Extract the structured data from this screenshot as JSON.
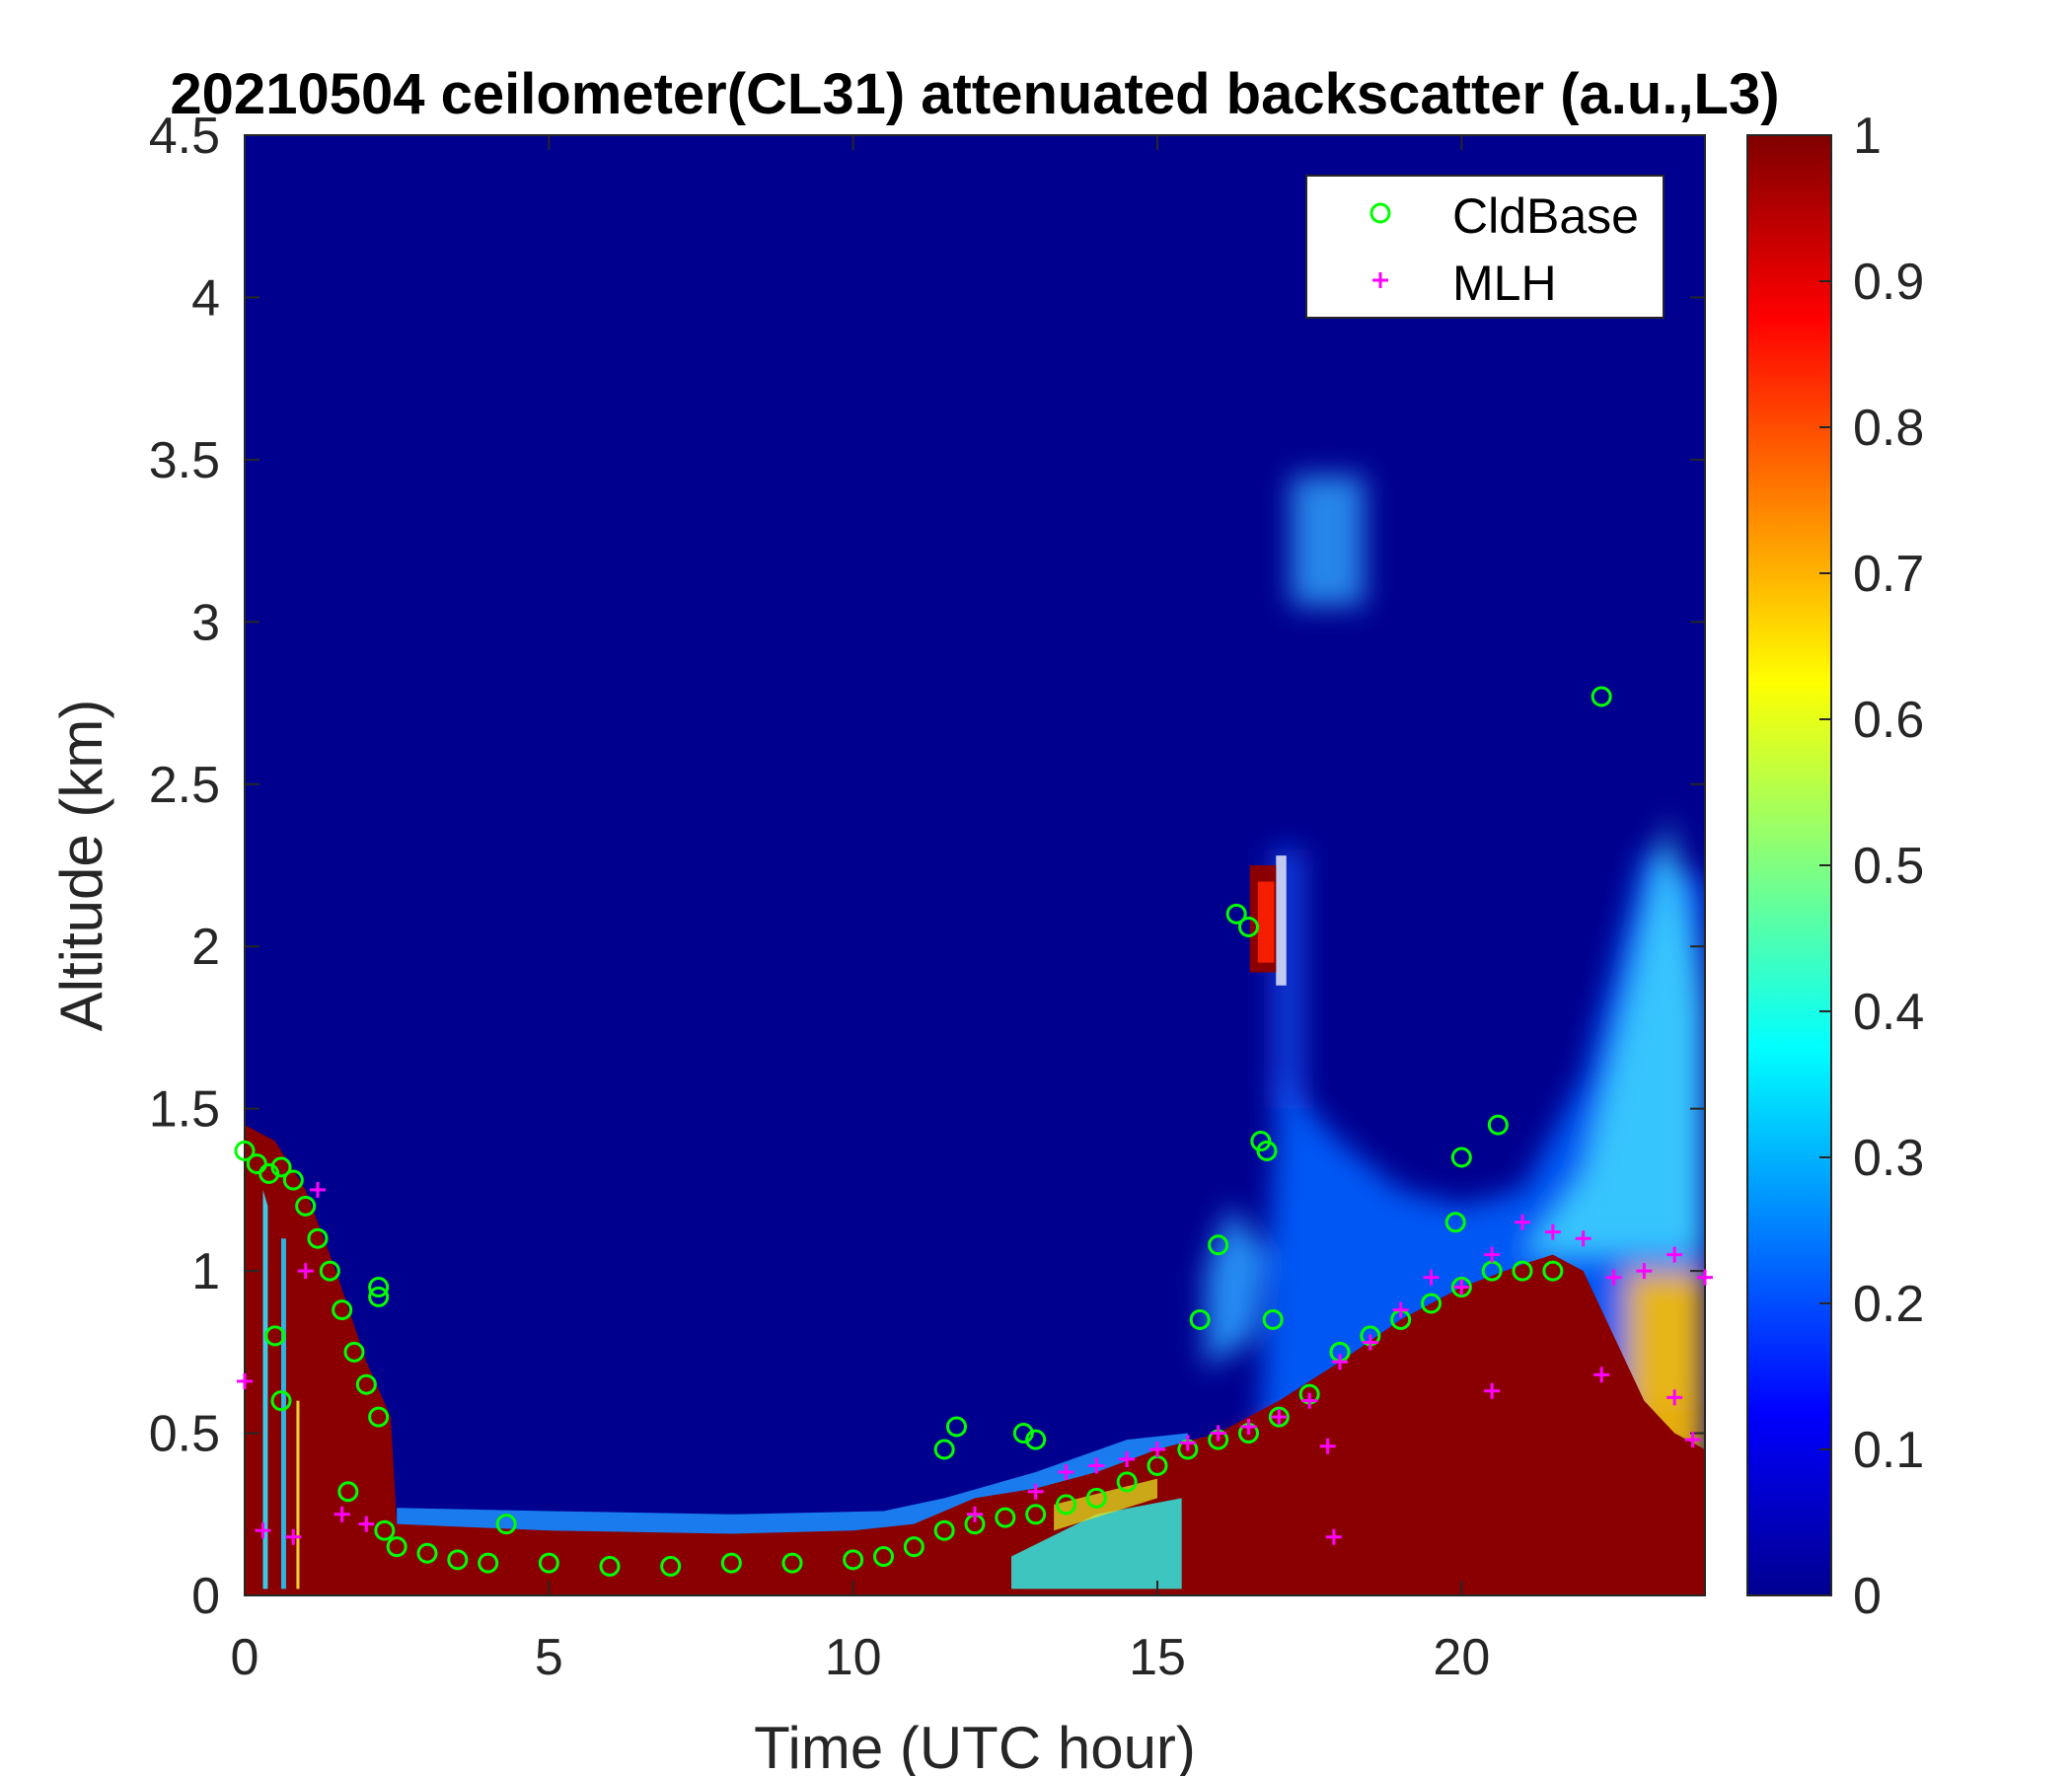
{
  "chart_data": {
    "type": "heatmap",
    "title": "20210504 ceilometer(CL31) attenuated backscatter (a.u.,L3)",
    "xlabel": "Time (UTC hour)",
    "ylabel": "Altitude (km)",
    "xlim": [
      0,
      24
    ],
    "ylim": [
      0,
      4.5
    ],
    "xticks": [
      "0",
      "5",
      "10",
      "15",
      "20"
    ],
    "yticks": [
      "0",
      "0.5",
      "1",
      "1.5",
      "2",
      "2.5",
      "3",
      "3.5",
      "4",
      "4.5"
    ],
    "colorbar": {
      "min": 0,
      "max": 1,
      "colormap": "jet",
      "ticks": [
        "0",
        "0.1",
        "0.2",
        "0.3",
        "0.4",
        "0.5",
        "0.6",
        "0.7",
        "0.8",
        "0.9",
        "1"
      ]
    },
    "legend": {
      "position": "top-right",
      "entries": [
        "CldBase",
        "MLH"
      ]
    },
    "colors": {
      "cldbase": "#00ff00",
      "mlh": "#ff00ff"
    },
    "series": [
      {
        "name": "CldBase",
        "marker": "circle",
        "x": [
          0.0,
          0.2,
          0.4,
          0.6,
          0.8,
          1.0,
          1.2,
          1.4,
          1.6,
          1.8,
          2.0,
          2.2,
          2.3,
          2.5,
          3.0,
          3.5,
          4.0,
          5.0,
          6.0,
          7.0,
          8.0,
          9.0,
          10.0,
          10.5,
          11.0,
          11.5,
          12.0,
          12.5,
          13.0,
          13.5,
          14.0,
          14.5,
          15.0,
          15.5,
          16.0,
          16.5,
          17.0,
          17.5,
          18.0,
          18.5,
          19.0,
          19.5,
          20.0,
          20.5,
          21.0,
          21.5,
          0.5,
          0.6,
          1.7,
          2.2,
          2.2,
          11.5,
          11.7,
          12.8,
          13.0,
          15.7,
          16.0,
          16.3,
          16.5,
          16.7,
          16.8,
          16.9,
          19.9,
          20.0,
          20.6,
          22.3,
          4.3
        ],
        "y": [
          1.37,
          1.33,
          1.3,
          1.32,
          1.28,
          1.2,
          1.1,
          1.0,
          0.88,
          0.75,
          0.65,
          0.55,
          0.2,
          0.15,
          0.13,
          0.11,
          0.1,
          0.1,
          0.09,
          0.09,
          0.1,
          0.1,
          0.11,
          0.12,
          0.15,
          0.2,
          0.22,
          0.24,
          0.25,
          0.28,
          0.3,
          0.35,
          0.4,
          0.45,
          0.48,
          0.5,
          0.55,
          0.62,
          0.75,
          0.8,
          0.85,
          0.9,
          0.95,
          1.0,
          1.0,
          1.0,
          0.8,
          0.6,
          0.32,
          0.95,
          0.92,
          0.45,
          0.52,
          0.5,
          0.48,
          0.85,
          1.08,
          2.1,
          2.06,
          1.4,
          1.37,
          0.85,
          1.15,
          1.35,
          1.45,
          2.77,
          0.22
        ]
      },
      {
        "name": "MLH",
        "marker": "plus",
        "x": [
          0.0,
          0.3,
          0.8,
          1.0,
          1.2,
          1.6,
          2.0,
          12.0,
          13.0,
          13.5,
          14.0,
          14.5,
          15.0,
          15.5,
          16.0,
          16.5,
          17.0,
          17.5,
          18.0,
          18.5,
          19.0,
          19.5,
          20.0,
          20.5,
          21.0,
          21.5,
          22.0,
          22.5,
          23.0,
          23.5,
          24.0,
          17.8,
          17.9,
          20.5,
          22.3,
          23.5,
          23.8
        ],
        "y": [
          0.66,
          0.2,
          0.18,
          1.0,
          1.25,
          0.25,
          0.22,
          0.25,
          0.32,
          0.38,
          0.4,
          0.42,
          0.45,
          0.47,
          0.5,
          0.52,
          0.55,
          0.6,
          0.72,
          0.78,
          0.88,
          0.98,
          0.95,
          1.05,
          1.15,
          1.12,
          1.1,
          0.98,
          1.0,
          1.05,
          0.98,
          0.46,
          0.18,
          0.63,
          0.68,
          0.61,
          0.48
        ]
      }
    ]
  }
}
